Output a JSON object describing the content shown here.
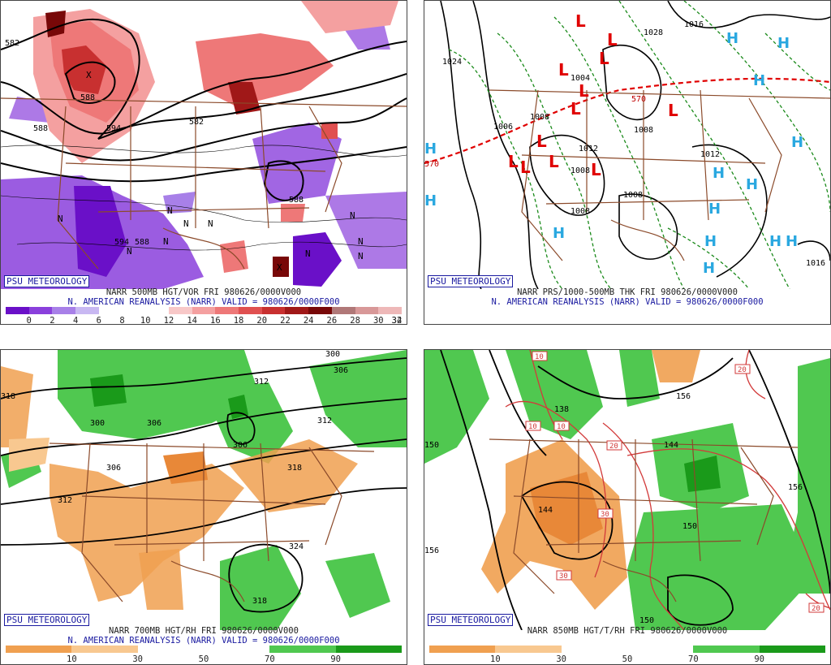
{
  "branding": "PSU METEOROLOGY",
  "subtitle": "N. AMERICAN REANALYSIS (NARR) VALID = 980626/0000F000",
  "panels": [
    {
      "title": "NARR 500MB HGT/VOR FRI 980626/0000V000",
      "colorbar": {
        "ticks": [
          "0",
          "2",
          "4",
          "6",
          "8",
          "10",
          "12",
          "14",
          "16",
          "18",
          "20",
          "22",
          "24",
          "26",
          "28",
          "30",
          "32",
          "34"
        ],
        "colors": [
          "#6a10c8",
          "#8a40dc",
          "#a880e8",
          "#c8b8f2",
          "#ffffff",
          "#ffffff",
          "#ffffff",
          "#f8c8c8",
          "#f4a0a0",
          "#ee7878",
          "#e05050",
          "#c83030",
          "#a01818",
          "#780808",
          "#b07878",
          "#d89898",
          "#eeb8b8"
        ]
      },
      "contour_labels": [
        "582",
        "588",
        "582",
        "594",
        "588",
        "594",
        "588",
        "588"
      ],
      "symbols": [
        "N",
        "N",
        "N",
        "N",
        "N",
        "N",
        "N",
        "N",
        "N",
        "N",
        "X",
        "X"
      ]
    },
    {
      "title": "NARR PRS/1000-500MB THK FRI 980626/0000V000",
      "contour_labels": [
        "1024",
        "1028",
        "1016",
        "1006",
        "1008",
        "1004",
        "1008",
        "1008",
        "1008",
        "1008",
        "1012",
        "1016",
        "1012",
        "570",
        "570"
      ],
      "highs": [
        "H",
        "H",
        "H",
        "H",
        "H",
        "H",
        "H",
        "H",
        "H",
        "H",
        "H",
        "H",
        "H",
        "H"
      ],
      "lows": [
        "L",
        "L",
        "L",
        "L",
        "L",
        "L",
        "L",
        "L",
        "L",
        "L",
        "L",
        "L"
      ]
    },
    {
      "title": "NARR 700MB HGT/RH FRI 980626/0000V000",
      "colorbar": {
        "ticks": [
          "10",
          "30",
          "50",
          "70",
          "90"
        ],
        "colors": [
          "#f0a050",
          "#f8c890",
          "#ffffff",
          "#ffffff",
          "#50c850",
          "#1a9a1a"
        ]
      },
      "contour_labels": [
        "318",
        "312",
        "300",
        "306",
        "306",
        "312",
        "306",
        "312",
        "318",
        "324",
        "318",
        "300",
        "306"
      ]
    },
    {
      "title": "NARR 850MB HGT/T/RH FRI 980626/0000V000",
      "colorbar": {
        "ticks": [
          "10",
          "30",
          "50",
          "70",
          "90"
        ],
        "colors": [
          "#f0a050",
          "#f8c890",
          "#ffffff",
          "#ffffff",
          "#50c850",
          "#1a9a1a"
        ]
      },
      "contour_labels": [
        "156",
        "138",
        "144",
        "156",
        "150",
        "156",
        "150",
        "144",
        "150"
      ],
      "temp_labels": [
        "10",
        "10",
        "10",
        "20",
        "30",
        "20",
        "30",
        "20"
      ]
    }
  ]
}
